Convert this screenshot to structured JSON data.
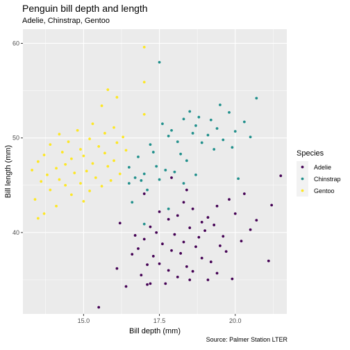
{
  "chart_data": {
    "type": "scatter",
    "title": "Penguin bill depth and length",
    "subtitle": "Adelie, Chinstrap, Gentoo",
    "caption": "Source: Palmer Station LTER",
    "xlabel": "Bill depth (mm)",
    "ylabel": "Bill length (mm)",
    "xlim": [
      13.0,
      21.7
    ],
    "ylim": [
      31.4,
      61.5
    ],
    "xticks": [
      15.0,
      17.5,
      20.0
    ],
    "xtick_labels": [
      "15.0",
      "17.5",
      "20.0"
    ],
    "yticks": [
      40,
      50,
      60
    ],
    "ytick_labels": [
      "40",
      "50",
      "60"
    ],
    "grid": true,
    "legend": {
      "title": "Species",
      "position": "right"
    },
    "series": [
      {
        "name": "Adelie",
        "color": "#440154",
        "points": [
          [
            15.5,
            32.1
          ],
          [
            16.4,
            34.3
          ],
          [
            17.1,
            34.5
          ],
          [
            17.2,
            34.6
          ],
          [
            17.7,
            34.6
          ],
          [
            18.5,
            35.0
          ],
          [
            19.1,
            35.0
          ],
          [
            19.9,
            35.1
          ],
          [
            18.1,
            35.3
          ],
          [
            16.9,
            35.5
          ],
          [
            19.4,
            35.7
          ],
          [
            18.6,
            35.9
          ],
          [
            17.8,
            36.0
          ],
          [
            16.1,
            36.2
          ],
          [
            18.4,
            36.4
          ],
          [
            17.1,
            36.6
          ],
          [
            17.5,
            36.7
          ],
          [
            19.2,
            36.9
          ],
          [
            21.1,
            37.0
          ],
          [
            18.9,
            37.3
          ],
          [
            17.3,
            37.5
          ],
          [
            16.6,
            37.7
          ],
          [
            18.2,
            37.8
          ],
          [
            19.7,
            38.0
          ],
          [
            17.9,
            38.1
          ],
          [
            16.8,
            38.3
          ],
          [
            18.7,
            38.5
          ],
          [
            19.5,
            38.6
          ],
          [
            17.6,
            38.8
          ],
          [
            18.3,
            39.0
          ],
          [
            20.2,
            39.1
          ],
          [
            17.0,
            39.3
          ],
          [
            18.8,
            39.5
          ],
          [
            19.6,
            39.6
          ],
          [
            16.7,
            39.7
          ],
          [
            18.0,
            39.8
          ],
          [
            17.4,
            40.0
          ],
          [
            19.0,
            40.2
          ],
          [
            20.5,
            40.3
          ],
          [
            18.5,
            40.5
          ],
          [
            17.2,
            40.6
          ],
          [
            19.3,
            40.8
          ],
          [
            16.2,
            41.0
          ],
          [
            18.9,
            41.1
          ],
          [
            20.7,
            41.3
          ],
          [
            17.8,
            41.4
          ],
          [
            19.1,
            41.6
          ],
          [
            18.1,
            41.8
          ],
          [
            20.0,
            42.0
          ],
          [
            17.5,
            42.2
          ],
          [
            18.6,
            42.5
          ],
          [
            19.4,
            42.8
          ],
          [
            21.2,
            42.9
          ],
          [
            18.3,
            43.2
          ],
          [
            19.8,
            43.5
          ],
          [
            17.0,
            44.1
          ],
          [
            20.3,
            44.1
          ],
          [
            18.4,
            44.5
          ],
          [
            17.9,
            45.8
          ],
          [
            21.5,
            46.0
          ]
        ]
      },
      {
        "name": "Chinstrap",
        "color": "#21908C",
        "points": [
          [
            17.5,
            58.0
          ],
          [
            20.7,
            54.2
          ],
          [
            19.5,
            53.5
          ],
          [
            18.5,
            52.8
          ],
          [
            19.8,
            52.7
          ],
          [
            18.8,
            52.2
          ],
          [
            18.3,
            52.0
          ],
          [
            19.2,
            51.9
          ],
          [
            20.3,
            51.7
          ],
          [
            17.6,
            51.5
          ],
          [
            18.7,
            51.3
          ],
          [
            19.4,
            51.0
          ],
          [
            17.9,
            50.8
          ],
          [
            20.0,
            50.7
          ],
          [
            18.6,
            50.5
          ],
          [
            19.1,
            50.3
          ],
          [
            17.8,
            50.2
          ],
          [
            20.5,
            50.1
          ],
          [
            19.6,
            49.8
          ],
          [
            18.1,
            49.6
          ],
          [
            18.9,
            49.5
          ],
          [
            17.2,
            49.3
          ],
          [
            19.9,
            49.0
          ],
          [
            19.3,
            48.8
          ],
          [
            17.3,
            48.5
          ],
          [
            18.2,
            48.3
          ],
          [
            16.8,
            48.0
          ],
          [
            18.4,
            47.6
          ],
          [
            17.4,
            47.0
          ],
          [
            16.5,
            46.9
          ],
          [
            17.7,
            46.6
          ],
          [
            18.0,
            46.4
          ],
          [
            17.0,
            46.2
          ],
          [
            18.7,
            46.1
          ],
          [
            16.7,
            45.8
          ],
          [
            20.1,
            45.7
          ],
          [
            17.5,
            45.6
          ],
          [
            16.9,
            45.5
          ],
          [
            16.5,
            45.2
          ],
          [
            18.3,
            45.2
          ],
          [
            17.1,
            44.5
          ],
          [
            16.6,
            43.2
          ],
          [
            17.8,
            42.5
          ],
          [
            17.0,
            40.9
          ]
        ]
      },
      {
        "name": "Gentoo",
        "color": "#FDE725",
        "points": [
          [
            17.0,
            59.6
          ],
          [
            17.0,
            55.9
          ],
          [
            15.8,
            55.1
          ],
          [
            16.1,
            54.3
          ],
          [
            15.6,
            53.4
          ],
          [
            17.0,
            52.5
          ],
          [
            15.3,
            51.5
          ],
          [
            16.0,
            51.1
          ],
          [
            14.8,
            50.8
          ],
          [
            15.7,
            50.5
          ],
          [
            14.2,
            50.4
          ],
          [
            16.3,
            50.1
          ],
          [
            15.2,
            49.9
          ],
          [
            14.5,
            49.6
          ],
          [
            16.1,
            49.5
          ],
          [
            13.9,
            49.3
          ],
          [
            15.5,
            49.1
          ],
          [
            14.9,
            48.8
          ],
          [
            16.4,
            48.7
          ],
          [
            14.3,
            48.5
          ],
          [
            15.7,
            48.4
          ],
          [
            13.7,
            48.2
          ],
          [
            15.0,
            48.1
          ],
          [
            14.6,
            47.8
          ],
          [
            16.0,
            47.6
          ],
          [
            13.5,
            47.5
          ],
          [
            15.3,
            47.3
          ],
          [
            14.4,
            47.2
          ],
          [
            15.8,
            47.0
          ],
          [
            14.1,
            46.8
          ],
          [
            13.3,
            46.6
          ],
          [
            15.1,
            46.5
          ],
          [
            14.7,
            46.3
          ],
          [
            16.2,
            46.2
          ],
          [
            13.8,
            46.1
          ],
          [
            15.4,
            45.8
          ],
          [
            14.2,
            45.6
          ],
          [
            15.9,
            45.5
          ],
          [
            13.6,
            45.4
          ],
          [
            14.9,
            45.2
          ],
          [
            14.4,
            45.0
          ],
          [
            15.6,
            44.9
          ],
          [
            13.9,
            44.5
          ],
          [
            15.2,
            44.4
          ],
          [
            14.6,
            44.0
          ],
          [
            13.4,
            43.5
          ],
          [
            15.0,
            43.3
          ],
          [
            14.1,
            42.8
          ],
          [
            13.7,
            42.0
          ],
          [
            13.5,
            41.5
          ]
        ]
      }
    ]
  }
}
